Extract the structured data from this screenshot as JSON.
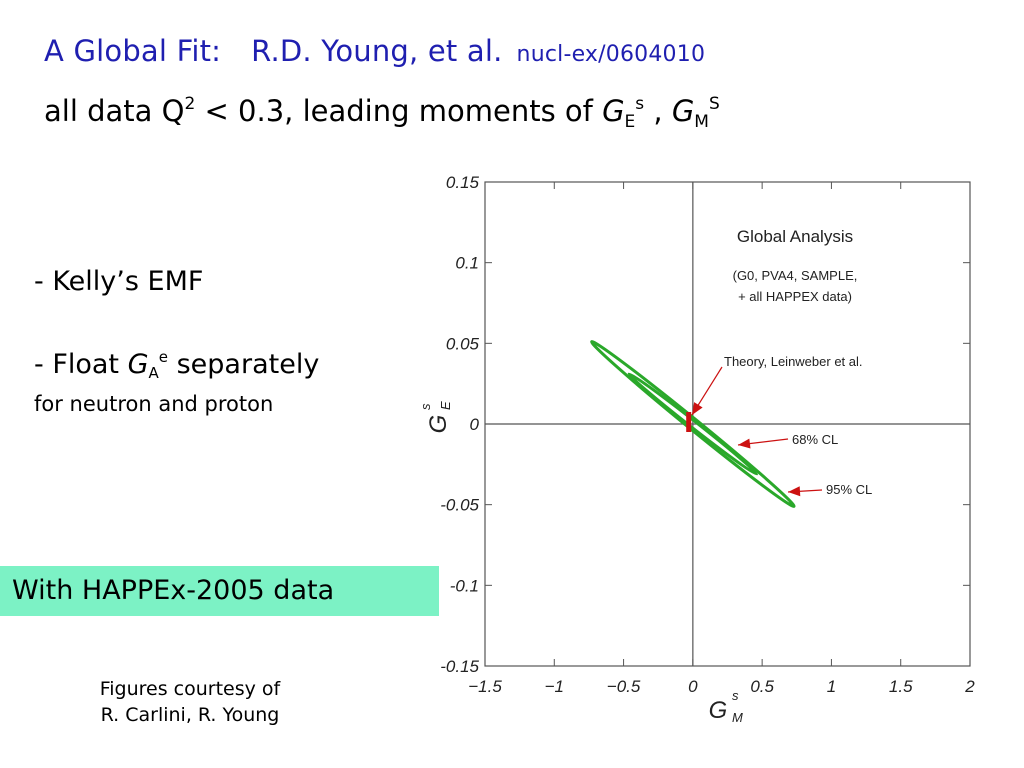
{
  "header": {
    "title_main": "A Global Fit:",
    "title_authors": "R.D. Young, et al.",
    "title_ref": "nucl-ex/0604010",
    "subtitle_prefix": "all data Q",
    "subtitle_q_sup": "2",
    "subtitle_mid": " < 0.3, leading moments of ",
    "subtitle_ge": "G",
    "subtitle_ge_sub": "E",
    "subtitle_ge_sup": "s",
    "subtitle_sep": " , ",
    "subtitle_gm": "G",
    "subtitle_gm_sub": "M",
    "subtitle_gm_sup": "S"
  },
  "bullets": {
    "item1": "- Kelly’s EMF",
    "item2_prefix": "- Float ",
    "item2_sym": "G",
    "item2_sub": "A",
    "item2_sup": "e",
    "item2_suffix": " separately",
    "item2_detail": "for neutron and proton"
  },
  "highlight": {
    "text": "With HAPPEx-2005 data"
  },
  "credit": {
    "line1": "Figures  courtesy of",
    "line2": "R. Carlini, R. Young"
  },
  "chart_data": {
    "type": "contour",
    "xlabel": "G",
    "xlabel_sup": "s",
    "xlabel_sub": "M",
    "ylabel": "G",
    "ylabel_sup": "s",
    "ylabel_sub": "E",
    "xlim": [
      -1.5,
      2
    ],
    "ylim": [
      -0.15,
      0.15
    ],
    "x_ticks": [
      -1.5,
      -1,
      -0.5,
      0,
      0.5,
      1,
      1.5,
      2
    ],
    "x_tick_labels": [
      "−1.5",
      "−1",
      "−0.5",
      "0",
      "0.5",
      "1",
      "1.5",
      "2"
    ],
    "y_ticks": [
      -0.15,
      -0.1,
      -0.05,
      0,
      0.05,
      0.1,
      0.15
    ],
    "y_tick_labels": [
      "-0.15",
      "-0.1",
      "-0.05",
      "0",
      "0.05",
      "0.1",
      "0.15"
    ],
    "zero_lines": true,
    "color": "#2aa82a",
    "arrow_color": "#cc1111",
    "ellipses": [
      {
        "label": "68% CL",
        "center": [
          0.0,
          0.0
        ],
        "semi_major_point": [
          -0.46,
          0.031
        ],
        "semi_minor": 0.09
      },
      {
        "label": "95% CL",
        "center": [
          0.0,
          0.0
        ],
        "semi_major_point": [
          -0.73,
          0.051
        ],
        "semi_minor": 0.145
      }
    ],
    "theory": {
      "label": "Theory, Leinweber et al.",
      "x": -0.03,
      "y": 0.0
    },
    "annotations": {
      "title": "Global Analysis",
      "line1": "(G0, PVA4, SAMPLE,",
      "line2": "+ all HAPPEX data)",
      "cl68": "68% CL",
      "cl95": "95% CL",
      "theory": "Theory, Leinweber et al."
    }
  }
}
